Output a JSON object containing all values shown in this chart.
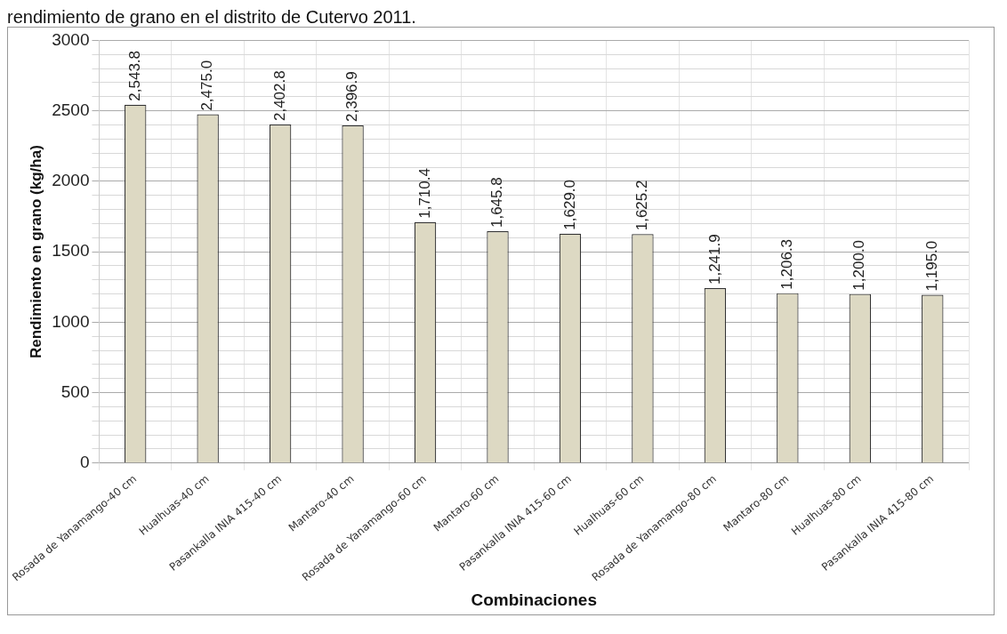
{
  "chart_data": {
    "type": "bar",
    "title": "rendimiento de grano en el distrito de Cutervo 2011.",
    "xlabel": "Combinaciones",
    "ylabel": "Rendimiento en grano (kg/ha)",
    "categories": [
      "Rosada de Yanamango-40 cm",
      "Hualhuas-40 cm",
      "Pasankalla INIA 415-40 cm",
      "Mantaro-40 cm",
      "Rosada de Yanamango-60 cm",
      "Mantaro-60 cm",
      "Pasankalla INIA 415-60 cm",
      "Hualhuas-60 cm",
      "Rosada de Yanamango-80 cm",
      "Mantaro-80 cm",
      "Hualhuas-80 cm",
      "Pasankalla INIA 415-80 cm"
    ],
    "values": [
      2543.8,
      2475.0,
      2402.8,
      2396.9,
      1710.4,
      1645.8,
      1629.0,
      1625.2,
      1241.9,
      1206.3,
      1200.0,
      1195.0
    ],
    "value_labels": [
      "2,543.8",
      "2,475.0",
      "2,402.8",
      "2,396.9",
      "1,710.4",
      "1,645.8",
      "1,629.0",
      "1,625.2",
      "1,241.9",
      "1,206.3",
      "1,200.0",
      "1,195.0"
    ],
    "color": "#ddd9c3",
    "ylim": [
      0,
      3000
    ],
    "yticks": [
      0,
      {
        "value": 100,
        "label": null
      },
      {
        "value": 200,
        "label": null
      },
      {
        "value": 300,
        "label": null
      },
      {
        "value": 400,
        "label": null
      },
      500,
      {
        "value": 600,
        "label": null
      },
      {
        "value": 700,
        "label": null
      },
      {
        "value": 800,
        "label": null
      },
      {
        "value": 900,
        "label": null
      },
      1000,
      {
        "value": 1100,
        "label": null
      },
      {
        "value": 1200,
        "label": null
      },
      {
        "value": 1300,
        "label": null
      },
      {
        "value": 1400,
        "label": null
      },
      1500,
      {
        "value": 1600,
        "label": null
      },
      {
        "value": 1700,
        "label": null
      },
      {
        "value": 1800,
        "label": null
      },
      {
        "value": 1900,
        "label": null
      },
      2000,
      {
        "value": 2100,
        "label": null
      },
      {
        "value": 2200,
        "label": null
      },
      {
        "value": 2300,
        "label": null
      },
      {
        "value": 2400,
        "label": null
      },
      2500,
      {
        "value": 2600,
        "label": null
      },
      {
        "value": 2700,
        "label": null
      },
      {
        "value": 2800,
        "label": null
      },
      {
        "value": 2900,
        "label": null
      },
      3000
    ],
    "grid": true,
    "legend": false
  }
}
